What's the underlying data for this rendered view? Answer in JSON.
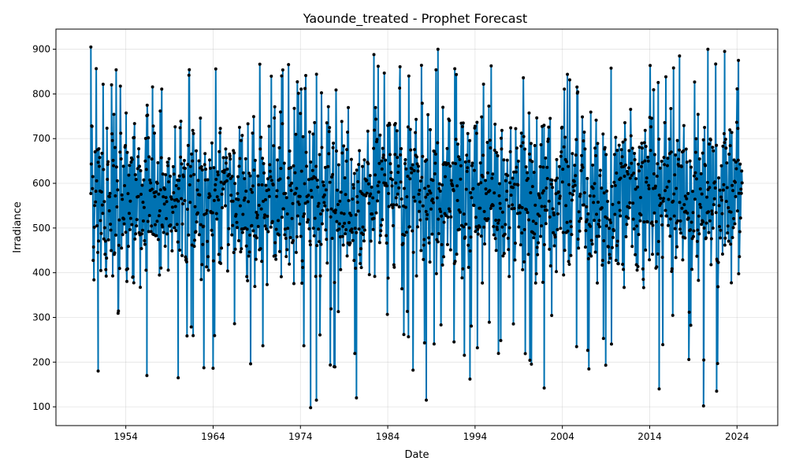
{
  "chart_data": {
    "type": "line",
    "title": "Yaounde_treated - Prophet Forecast",
    "xlabel": "Date",
    "ylabel": "Irradiance",
    "x_range": [
      "1950-01-01",
      "2024-08-31"
    ],
    "xlim": [
      "1946-01-01",
      "2028-09-01"
    ],
    "ylim": [
      58,
      945
    ],
    "x_ticks": [
      "1954",
      "1964",
      "1974",
      "1984",
      "1994",
      "2004",
      "2014",
      "2024"
    ],
    "y_ticks": [
      100,
      200,
      300,
      400,
      500,
      600,
      700,
      800,
      900
    ],
    "grid": true,
    "series": [
      {
        "role": "forecast",
        "color": "#0072b2",
        "marker": "line",
        "summary": {
          "min": 98,
          "max": 905,
          "typical_low": 360,
          "typical_high": 780
        }
      },
      {
        "role": "observed",
        "color": "#000000",
        "marker": "dot",
        "summary": {
          "min": 98,
          "max": 905
        }
      }
    ],
    "annotated_extremes": [
      {
        "x": "1950-01-01",
        "y": 905
      },
      {
        "x": "1950-11-01",
        "y": 180
      },
      {
        "x": "1956-06-01",
        "y": 170
      },
      {
        "x": "1960-01-01",
        "y": 165
      },
      {
        "x": "1975-03-01",
        "y": 98
      },
      {
        "x": "1975-11-01",
        "y": 115
      },
      {
        "x": "1980-06-01",
        "y": 120
      },
      {
        "x": "1982-06-01",
        "y": 888
      },
      {
        "x": "1988-06-01",
        "y": 115
      },
      {
        "x": "1989-10-01",
        "y": 900
      },
      {
        "x": "1993-06-01",
        "y": 162
      },
      {
        "x": "2001-12-01",
        "y": 142
      },
      {
        "x": "2015-02-01",
        "y": 140
      },
      {
        "x": "2017-06-01",
        "y": 885
      },
      {
        "x": "2020-03-01",
        "y": 102
      },
      {
        "x": "2020-09-01",
        "y": 900
      },
      {
        "x": "2021-09-01",
        "y": 135
      },
      {
        "x": "2022-08-01",
        "y": 895
      },
      {
        "x": "2024-03-01",
        "y": 875
      }
    ]
  }
}
